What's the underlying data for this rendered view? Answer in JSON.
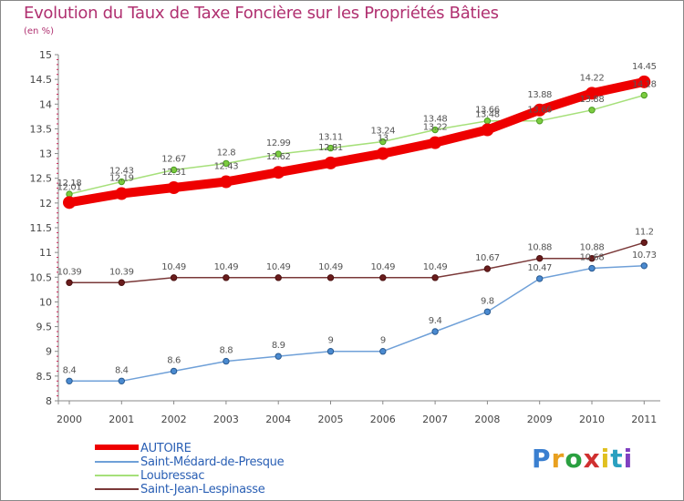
{
  "chart_data": {
    "type": "line",
    "title": "Evolution du Taux de Taxe Foncière sur les Propriétés Bâties",
    "unit_label": "(en %)",
    "xlabel": "",
    "ylabel": "",
    "categories": [
      "2000",
      "2001",
      "2002",
      "2003",
      "2004",
      "2005",
      "2006",
      "2007",
      "2008",
      "2009",
      "2010",
      "2011"
    ],
    "ylim": [
      8,
      15
    ],
    "yticks": [
      "8",
      "8.5",
      "9",
      "9.5",
      "10",
      "10.5",
      "11",
      "11.5",
      "12",
      "12.5",
      "13",
      "13.5",
      "14",
      "14.5",
      "15"
    ],
    "grid": false,
    "legend_position": "bottom-left",
    "series": [
      {
        "name": "AUTOIRE",
        "color": "#ee0000",
        "values": [
          12.01,
          12.19,
          12.31,
          12.43,
          12.62,
          12.81,
          13.0,
          13.22,
          13.48,
          13.88,
          14.22,
          14.45
        ],
        "labels": [
          "12.01",
          "12.19",
          "12.31",
          "12.43",
          "12.62",
          "12.81",
          "13",
          "13.22",
          "13.48",
          "13.88",
          "14.22",
          "14.45"
        ]
      },
      {
        "name": "Saint-Médard-de-Presque",
        "color": "#6fa0d8",
        "values": [
          8.4,
          8.4,
          8.6,
          8.8,
          8.9,
          9.0,
          9.0,
          9.4,
          9.8,
          10.47,
          10.68,
          10.73
        ],
        "labels": [
          "8.4",
          "8.4",
          "8.6",
          "8.8",
          "8.9",
          "9",
          "9",
          "9.4",
          "9.8",
          "10.47",
          "10.68",
          "10.73"
        ]
      },
      {
        "name": "Loubressac",
        "color": "#a6e07a",
        "values": [
          12.18,
          12.43,
          12.67,
          12.8,
          12.99,
          13.11,
          13.24,
          13.48,
          13.66,
          13.66,
          13.88,
          14.18
        ],
        "labels": [
          "12.18",
          "12.43",
          "12.67",
          "12.8",
          "12.99",
          "13.11",
          "13.24",
          "13.48",
          "13.66",
          "13.66",
          "13.88",
          "14.18"
        ]
      },
      {
        "name": "Saint-Jean-Lespinasse",
        "color": "#7a3838",
        "values": [
          10.39,
          10.39,
          10.49,
          10.49,
          10.49,
          10.49,
          10.49,
          10.49,
          10.67,
          10.88,
          10.88,
          11.2
        ],
        "labels": [
          "10.39",
          "10.39",
          "10.49",
          "10.49",
          "10.49",
          "10.49",
          "10.49",
          "10.49",
          "10.67",
          "10.88",
          "10.88",
          "11.2"
        ]
      }
    ]
  },
  "logo": {
    "letters": [
      "P",
      "r",
      "o",
      "x",
      "i",
      "t",
      "i"
    ],
    "colors": [
      "#3a7fd0",
      "#e8a020",
      "#2aa040",
      "#d03030",
      "#e0c020",
      "#2aa0c0",
      "#8040c0"
    ]
  }
}
